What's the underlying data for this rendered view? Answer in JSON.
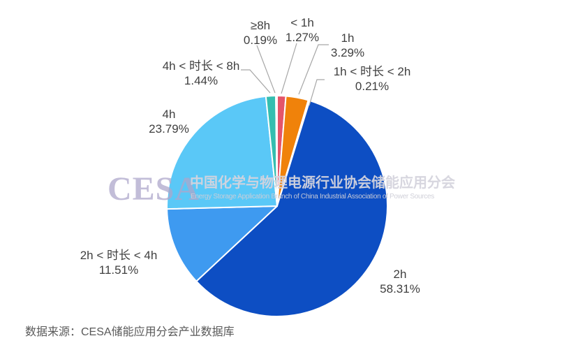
{
  "chart_data": {
    "type": "pie",
    "title": "",
    "unit": "%",
    "direction": "clockwise",
    "start_angle_deg": 0,
    "background": "#FFFFFF",
    "center": [
      397,
      295
    ],
    "radius": 158,
    "slice_border_color": "#FFFFFF",
    "leader_line_color": "#A6A6A6",
    "label_text_color": "#3F3F3F",
    "slices": [
      {
        "label": "< 1h",
        "value": 1.27,
        "pct_text": "1.27%",
        "color": "#E4556A",
        "label_pos": [
          433,
          22
        ],
        "leader_line": [
          [
            425,
            62
          ],
          [
            403,
            134
          ]
        ]
      },
      {
        "label": "1h",
        "value": 3.29,
        "pct_text": "3.29%",
        "color": "#F0820A",
        "label_pos": [
          498,
          44
        ],
        "leader_line": [
          [
            471,
            64
          ],
          [
            456,
            64
          ],
          [
            428,
            135
          ]
        ]
      },
      {
        "label": "1h < 时长 < 2h",
        "value": 0.21,
        "pct_text": "0.21%",
        "color": "#F2B33D",
        "label_pos": [
          533,
          92
        ],
        "leader_line": [
          [
            465,
            114
          ],
          [
            454,
            114
          ],
          [
            443,
            151
          ]
        ]
      },
      {
        "label": "2h",
        "value": 58.31,
        "pct_text": "58.31%",
        "color": "#0D4EC3",
        "label_pos": [
          573,
          382
        ],
        "leader_line": null
      },
      {
        "label": "2h < 时长 < 4h",
        "value": 11.51,
        "pct_text": "11.51%",
        "color": "#3E9AF0",
        "label_pos": [
          170,
          355
        ],
        "leader_line": null
      },
      {
        "label": "4h",
        "value": 23.79,
        "pct_text": "23.79%",
        "color": "#5AC8F7",
        "label_pos": [
          242,
          153
        ],
        "leader_line": null
      },
      {
        "label": "4h < 时长 < 8h",
        "value": 1.44,
        "pct_text": "1.44%",
        "color": "#34BEB0",
        "label_pos": [
          288,
          84
        ],
        "leader_line": [
          [
            345,
            100
          ],
          [
            358,
            100
          ],
          [
            387,
            133
          ]
        ]
      },
      {
        "label": "≥8h",
        "value": 0.19,
        "pct_text": "0.19%",
        "color": "#C9536B",
        "label_pos": [
          373,
          26
        ],
        "leader_line": [
          [
            368,
            65
          ],
          [
            394,
            133
          ]
        ]
      }
    ]
  },
  "watermark": {
    "logo_text": "CESA",
    "title_cn": "中国化学与物理电源行业协会储能应用分会",
    "subtitle_en": "Energy Storage Application Branch of China Industrial Association of Power Sources"
  },
  "source_note": "数据来源：CESA储能应用分会产业数据库"
}
